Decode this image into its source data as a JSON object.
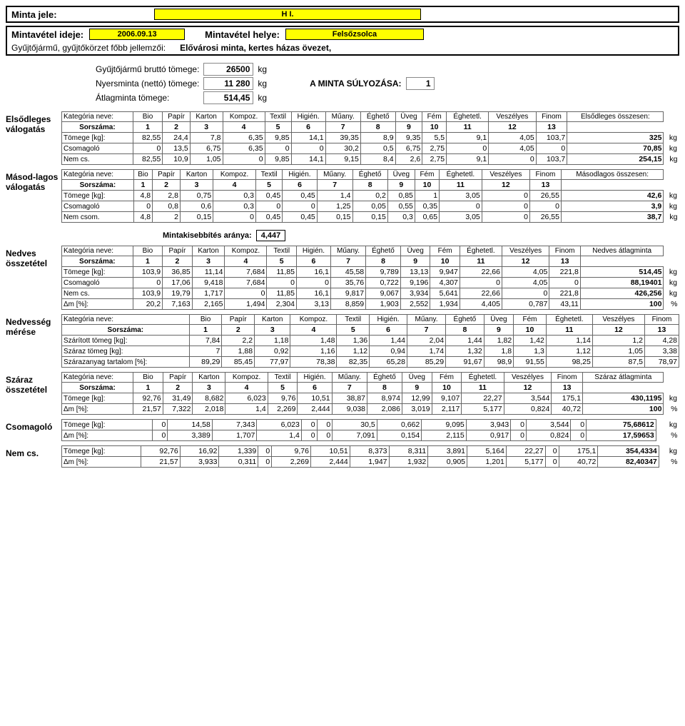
{
  "header": {
    "minta_jele_label": "Minta jele:",
    "minta_jele_value": "H I.",
    "mintavetel_ideje_label": "Mintavétel ideje:",
    "mintavetel_ideje_value": "2006.09.13",
    "mintavetel_helye_label": "Mintavétel helye:",
    "mintavetel_helye_value": "Felsőzsolca",
    "gyujto_label": "Gyűjtőjármű, gyűjtőkörzet főbb jellemzői:",
    "gyujto_desc": "Elővárosi minta, kertes házas övezet,"
  },
  "weights": {
    "brutto_label": "Gyűjtőjármű bruttó tömege:",
    "brutto_val": "26500",
    "brutto_unit": "kg",
    "nyers_label": "Nyersminta (nettó) tömege:",
    "nyers_val": "11 280",
    "nyers_unit": "kg",
    "atlag_label": "Átlagminta tömege:",
    "atlag_val": "514,45",
    "atlag_unit": "kg",
    "sulyozas_label": "A MINTA SÚLYOZÁSA:",
    "sulyozas_val": "1"
  },
  "cols": {
    "kat": "Kategória neve:",
    "sorsz": "Sorszáma:",
    "headers": [
      "Bio",
      "Papír",
      "Karton",
      "Kompoz.",
      "Textil",
      "Higién.",
      "Műany.",
      "Éghető",
      "Üveg",
      "Fém",
      "Éghetetl.",
      "Veszélyes",
      "Finom"
    ],
    "nums": [
      "1",
      "2",
      "3",
      "4",
      "5",
      "6",
      "7",
      "8",
      "9",
      "10",
      "11",
      "12",
      "13"
    ]
  },
  "elsod": {
    "title": "Elsődleges válogatás",
    "tot_label": "Elsődleges összesen:",
    "rows": [
      {
        "lbl": "Tömege [kg]:",
        "v": [
          "82,55",
          "24,4",
          "7,8",
          "6,35",
          "9,85",
          "14,1",
          "39,35",
          "8,9",
          "9,35",
          "5,5",
          "9,1",
          "4,05",
          "103,7"
        ],
        "tot": "325",
        "unit": "kg"
      },
      {
        "lbl": "Csomagoló",
        "v": [
          "0",
          "13,5",
          "6,75",
          "6,35",
          "0",
          "0",
          "30,2",
          "0,5",
          "6,75",
          "2,75",
          "0",
          "4,05",
          "0"
        ],
        "tot": "70,85",
        "unit": "kg"
      },
      {
        "lbl": "Nem cs.",
        "v": [
          "82,55",
          "10,9",
          "1,05",
          "0",
          "9,85",
          "14,1",
          "9,15",
          "8,4",
          "2,6",
          "2,75",
          "9,1",
          "0",
          "103,7"
        ],
        "tot": "254,15",
        "unit": "kg"
      }
    ]
  },
  "masod": {
    "title": "Másod-lagos válogatás",
    "tot_label": "Másodlagos összesen:",
    "rows": [
      {
        "lbl": "Tömege [kg]:",
        "v": [
          "4,8",
          "2,8",
          "0,75",
          "0,3",
          "0,45",
          "0,45",
          "1,4",
          "0,2",
          "0,85",
          "1",
          "3,05",
          "0",
          "26,55"
        ],
        "tot": "42,6",
        "unit": "kg"
      },
      {
        "lbl": "Csomagoló",
        "v": [
          "0",
          "0,8",
          "0,6",
          "0,3",
          "0",
          "0",
          "1,25",
          "0,05",
          "0,55",
          "0,35",
          "0",
          "0",
          "0"
        ],
        "tot": "3,9",
        "unit": "kg"
      },
      {
        "lbl": "Nem csom.",
        "v": [
          "4,8",
          "2",
          "0,15",
          "0",
          "0,45",
          "0,45",
          "0,15",
          "0,15",
          "0,3",
          "0,65",
          "3,05",
          "0",
          "26,55"
        ],
        "tot": "38,7",
        "unit": "kg"
      }
    ]
  },
  "mintakiseb": {
    "label": "Mintakisebbítés aránya:",
    "value": "4,447"
  },
  "nedves": {
    "title": "Nedves összetétel",
    "tot_label": "Nedves átlagminta",
    "rows": [
      {
        "lbl": "Tömege [kg]:",
        "v": [
          "103,9",
          "36,85",
          "11,14",
          "7,684",
          "11,85",
          "16,1",
          "45,58",
          "9,789",
          "13,13",
          "9,947",
          "22,66",
          "4,05",
          "221,8"
        ],
        "tot": "514,45",
        "unit": "kg"
      },
      {
        "lbl": "Csomagoló",
        "v": [
          "0",
          "17,06",
          "9,418",
          "7,684",
          "0",
          "0",
          "35,76",
          "0,722",
          "9,196",
          "4,307",
          "0",
          "4,05",
          "0"
        ],
        "tot": "88,19401",
        "unit": "kg"
      },
      {
        "lbl": "Nem cs.",
        "v": [
          "103,9",
          "19,79",
          "1,717",
          "0",
          "11,85",
          "16,1",
          "9,817",
          "9,067",
          "3,934",
          "5,641",
          "22,66",
          "0",
          "221,8"
        ],
        "tot": "426,256",
        "unit": "kg"
      },
      {
        "lbl": "Δm [%]:",
        "v": [
          "20,2",
          "7,163",
          "2,165",
          "1,494",
          "2,304",
          "3,13",
          "8,859",
          "1,903",
          "2,552",
          "1,934",
          "4,405",
          "0,787",
          "43,11"
        ],
        "tot": "100",
        "unit": "%"
      }
    ]
  },
  "nedvesseg": {
    "title": "Nedvesség mérése",
    "rows": [
      {
        "lbl": "Szárított tömeg [kg]:",
        "v": [
          "7,84",
          "2,2",
          "1,18",
          "1,48",
          "1,36",
          "1,44",
          "2,04",
          "1,44",
          "1,82",
          "1,42",
          "1,14",
          "1,2",
          "4,28"
        ]
      },
      {
        "lbl": "Száraz tömeg [kg]:",
        "v": [
          "7",
          "1,88",
          "0,92",
          "1,16",
          "1,12",
          "0,94",
          "1,74",
          "1,32",
          "1,8",
          "1,3",
          "1,12",
          "1,05",
          "3,38"
        ]
      },
      {
        "lbl": "Szárazanyag tartalom [%]:",
        "v": [
          "89,29",
          "85,45",
          "77,97",
          "78,38",
          "82,35",
          "65,28",
          "85,29",
          "91,67",
          "98,9",
          "91,55",
          "98,25",
          "87,5",
          "78,97"
        ]
      }
    ]
  },
  "szaraz": {
    "title": "Száraz összetétel",
    "tot_label": "Száraz átlagminta",
    "rows": [
      {
        "lbl": "Tömege [kg]:",
        "v": [
          "92,76",
          "31,49",
          "8,682",
          "6,023",
          "9,76",
          "10,51",
          "38,87",
          "8,974",
          "12,99",
          "9,107",
          "22,27",
          "3,544",
          "175,1"
        ],
        "tot": "430,1195",
        "unit": "kg"
      },
      {
        "lbl": "Δm [%]:",
        "v": [
          "21,57",
          "7,322",
          "2,018",
          "1,4",
          "2,269",
          "2,444",
          "9,038",
          "2,086",
          "3,019",
          "2,117",
          "5,177",
          "0,824",
          "40,72"
        ],
        "tot": "100",
        "unit": "%"
      }
    ]
  },
  "csomag": {
    "title": "Csomagoló",
    "rows": [
      {
        "lbl": "Tömege [kg]:",
        "v": [
          "0",
          "14,58",
          "7,343",
          "6,023",
          "0",
          "0",
          "30,5",
          "0,662",
          "9,095",
          "3,943",
          "0",
          "3,544",
          "0"
        ],
        "tot": "75,68612",
        "unit": "kg"
      },
      {
        "lbl": "Δm [%]:",
        "v": [
          "0",
          "3,389",
          "1,707",
          "1,4",
          "0",
          "0",
          "7,091",
          "0,154",
          "2,115",
          "0,917",
          "0",
          "0,824",
          "0"
        ],
        "tot": "17,59653",
        "unit": "%"
      }
    ]
  },
  "nemcs": {
    "title": "Nem cs.",
    "rows": [
      {
        "lbl": "Tömege [kg]:",
        "v": [
          "92,76",
          "16,92",
          "1,339",
          "0",
          "9,76",
          "10,51",
          "8,373",
          "8,311",
          "3,891",
          "5,164",
          "22,27",
          "0",
          "175,1"
        ],
        "tot": "354,4334",
        "unit": "kg"
      },
      {
        "lbl": "Δm [%]:",
        "v": [
          "21,57",
          "3,933",
          "0,311",
          "0",
          "2,269",
          "2,444",
          "1,947",
          "1,932",
          "0,905",
          "1,201",
          "5,177",
          "0",
          "40,72"
        ],
        "tot": "82,40347",
        "unit": "%"
      }
    ]
  }
}
